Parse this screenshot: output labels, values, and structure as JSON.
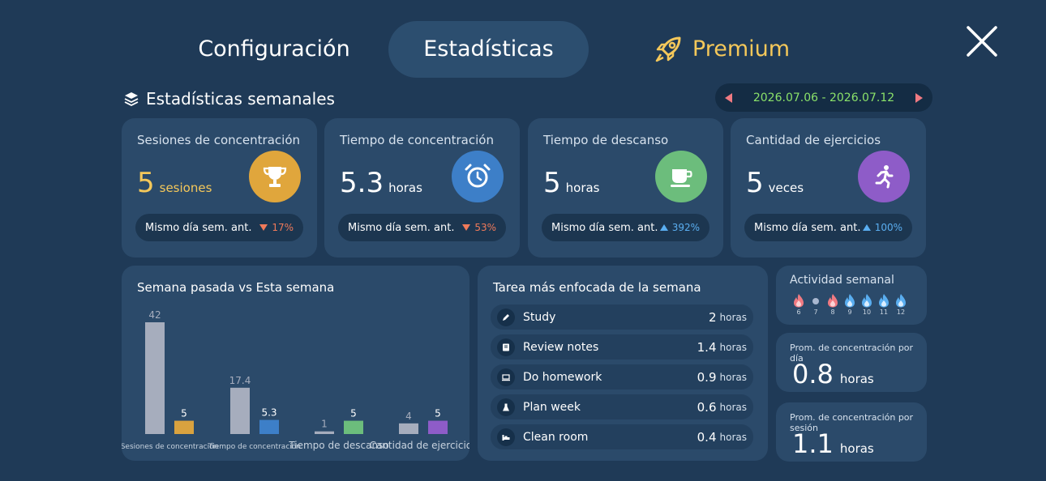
{
  "nav": {
    "config_label": "Configuración",
    "stats_label": "Estadísticas",
    "premium_label": "Premium"
  },
  "colors": {
    "background": "#1f3a57",
    "card": "#2b4a6a",
    "premium": "#f5c85a",
    "date": "#8be26a",
    "down": "#f07a5a",
    "up": "#5aaef0"
  },
  "section": {
    "title": "Estadísticas semanales",
    "date_range": "2026.07.06 - 2026.07.12"
  },
  "stats": [
    {
      "label": "Sesiones de concentración",
      "value": "5",
      "unit": "sesiones",
      "icon": "trophy-icon",
      "icon_color": "#e0a63c",
      "compare_label": "Mismo día sem. ant.",
      "change": "17%",
      "direction": "down"
    },
    {
      "label": "Tiempo de concentración",
      "value": "5.3",
      "unit": "horas",
      "icon": "alarm-clock-icon",
      "icon_color": "#3d7fc8",
      "compare_label": "Mismo día sem. ant.",
      "change": "53%",
      "direction": "down"
    },
    {
      "label": "Tiempo de descanso",
      "value": "5",
      "unit": "horas",
      "icon": "coffee-cup-icon",
      "icon_color": "#6cbd7c",
      "compare_label": "Mismo día sem. ant.",
      "change": "392%",
      "direction": "up"
    },
    {
      "label": "Cantidad de ejercicios",
      "value": "5",
      "unit": "veces",
      "icon": "running-icon",
      "icon_color": "#8e5cc8",
      "compare_label": "Mismo día sem. ant.",
      "change": "100%",
      "direction": "up"
    }
  ],
  "chart_data": {
    "type": "bar",
    "title": "Semana pasada vs Esta semana",
    "categories": [
      "Sesiones de concentración",
      "Tiempo de concentración",
      "Tiempo de descanso",
      "Cantidad de ejercicios"
    ],
    "series": [
      {
        "values": [
          42,
          17.4,
          1,
          4
        ],
        "labels": [
          "42",
          "17.4",
          "1",
          "4"
        ],
        "color": "#a6adbd"
      },
      {
        "values": [
          5,
          5.3,
          5,
          5
        ],
        "labels": [
          "5",
          "5.3",
          "5",
          "5"
        ],
        "colors": [
          "#d9a23f",
          "#3d7fc8",
          "#6cbd7c",
          "#8e5cc8"
        ]
      }
    ],
    "grid": false
  },
  "tasks": {
    "title": "Tarea más enfocada de la semana",
    "unit": "horas",
    "items": [
      {
        "name": "Study",
        "hours": "2",
        "icon": "pencil-icon"
      },
      {
        "name": "Review notes",
        "hours": "1.4",
        "icon": "book-icon"
      },
      {
        "name": "Do homework",
        "hours": "0.9",
        "icon": "laptop-icon"
      },
      {
        "name": "Plan week",
        "hours": "0.6",
        "icon": "flask-icon"
      },
      {
        "name": "Clean room",
        "hours": "0.4",
        "icon": "bed-icon"
      }
    ]
  },
  "activity": {
    "title": "Actividad semanal",
    "days": [
      {
        "label": "6",
        "state": "pink"
      },
      {
        "label": "7",
        "state": "dot"
      },
      {
        "label": "8",
        "state": "pink"
      },
      {
        "label": "9",
        "state": "blue"
      },
      {
        "label": "10",
        "state": "blue"
      },
      {
        "label": "11",
        "state": "blue"
      },
      {
        "label": "12",
        "state": "blue"
      }
    ]
  },
  "averages": {
    "per_day_label": "Prom. de concentración por día",
    "per_day_value": "0.8",
    "per_session_label": "Prom. de concentración por sesión",
    "per_session_value": "1.1",
    "unit": "horas"
  }
}
